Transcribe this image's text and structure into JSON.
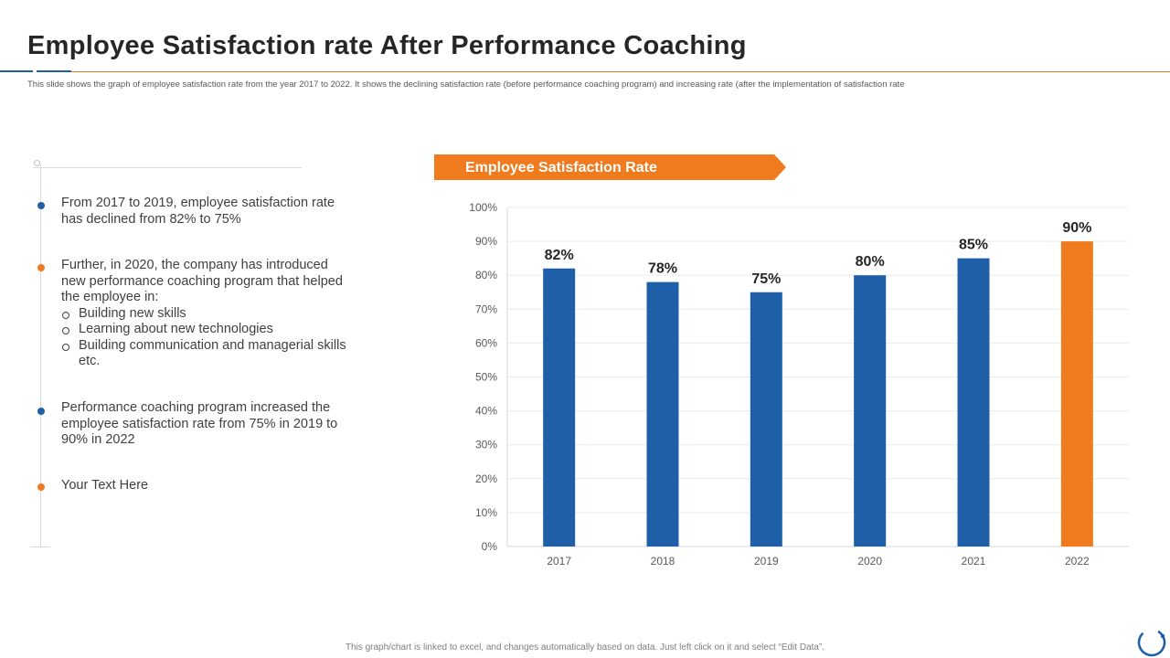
{
  "header": {
    "title": "Employee Satisfaction rate After Performance Coaching",
    "subtitle": "This slide shows the graph of employee satisfaction rate from the year 2017 to 2022. It shows the declining satisfaction rate (before performance coaching program) and increasing rate (after the implementation  of satisfaction rate"
  },
  "bullets": [
    {
      "text": "From 2017 to 2019, employee satisfaction rate has declined from 82% to 75%",
      "color": "#1f5fa8"
    },
    {
      "text": "Further, in 2020, the company has introduced new performance coaching program that helped the employee in:",
      "color": "#f07a1e",
      "sub_items": [
        "Building new skills",
        "Learning about new technologies",
        "Building communication and managerial skills etc."
      ]
    },
    {
      "text": "Performance coaching program increased the employee satisfaction rate from 75% in 2019 to 90% in 2022",
      "color": "#1f5fa8"
    },
    {
      "text": "Your Text Here",
      "color": "#f07a1e"
    }
  ],
  "chart_banner": "Employee Satisfaction Rate",
  "footer": "This graph/chart is linked to excel, and changes automatically based on data. Just left click on it and select “Edit Data”.",
  "colors": {
    "primary": "#1f5fa8",
    "accent": "#f07a1e",
    "grid": "#ececec",
    "axis": "#d9d9d9"
  },
  "icons": {
    "corner": "loader-ring-icon"
  },
  "chart_data": {
    "type": "bar",
    "title": "Employee Satisfaction Rate",
    "xlabel": "",
    "ylabel": "",
    "categories": [
      "2017",
      "2018",
      "2019",
      "2020",
      "2021",
      "2022"
    ],
    "values": [
      82,
      78,
      75,
      80,
      85,
      90
    ],
    "data_labels": [
      "82%",
      "78%",
      "75%",
      "80%",
      "85%",
      "90%"
    ],
    "bar_colors": [
      "#1f5fa8",
      "#1f5fa8",
      "#1f5fa8",
      "#1f5fa8",
      "#1f5fa8",
      "#f07a1e"
    ],
    "ylim": [
      0,
      100
    ],
    "yticks": [
      0,
      10,
      20,
      30,
      40,
      50,
      60,
      70,
      80,
      90,
      100
    ],
    "ytick_suffix": "%",
    "grid": true,
    "legend": "none"
  }
}
